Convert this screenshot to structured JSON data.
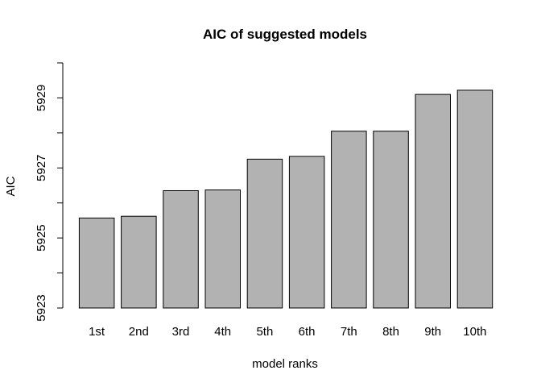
{
  "chart_data": {
    "type": "bar",
    "title": "AIC of suggested models",
    "xlabel": "model ranks",
    "ylabel": "AIC",
    "categories": [
      "1st",
      "2nd",
      "3rd",
      "4th",
      "5th",
      "6th",
      "7th",
      "8th",
      "9th",
      "10th"
    ],
    "values": [
      5925.57,
      5925.62,
      5926.35,
      5926.37,
      5927.25,
      5927.33,
      5928.05,
      5928.05,
      5929.1,
      5929.22
    ],
    "ylim": [
      5923,
      5930
    ],
    "yticks": [
      5923,
      5924,
      5925,
      5926,
      5927,
      5928,
      5929,
      5930
    ],
    "ytick_labels": [
      "5923",
      "",
      "5925",
      "",
      "5927",
      "",
      "5929",
      ""
    ],
    "grid": false,
    "bar_color": "#b2b2b2",
    "edge_color": "#000000"
  }
}
